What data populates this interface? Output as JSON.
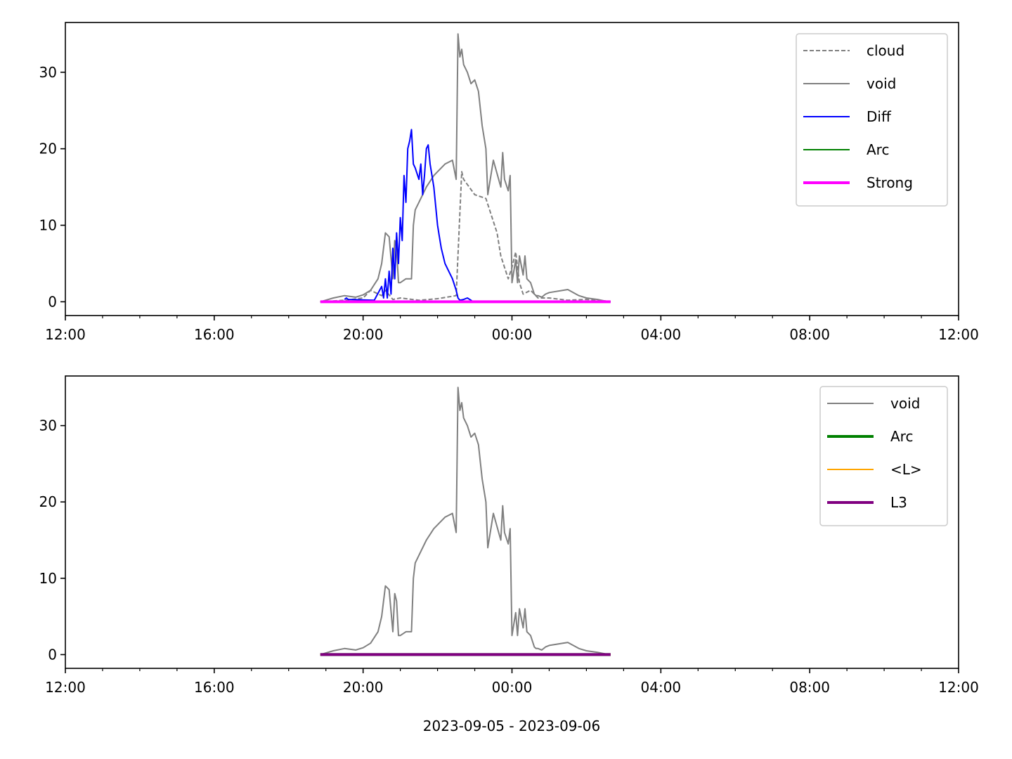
{
  "figure": {
    "date_range_label": "2023-09-05 - 2023-09-06"
  },
  "chart_data": [
    {
      "type": "line",
      "x_unit": "hours since 2023-09-05 12:00",
      "xlim": [
        0,
        24
      ],
      "ylim": [
        -1.8,
        36.5
      ],
      "x_ticks": [
        {
          "t": 0,
          "label": "12:00"
        },
        {
          "t": 4,
          "label": "16:00"
        },
        {
          "t": 8,
          "label": "20:00"
        },
        {
          "t": 12,
          "label": "00:00"
        },
        {
          "t": 16,
          "label": "04:00"
        },
        {
          "t": 20,
          "label": "08:00"
        },
        {
          "t": 24,
          "label": "12:00"
        }
      ],
      "y_ticks": [
        0,
        10,
        20,
        30
      ],
      "legend_position": "upper right",
      "series": [
        {
          "name": "cloud",
          "color": "#808080",
          "style": "dashed",
          "x": [
            6.85,
            7.5,
            8.0,
            8.2,
            8.5,
            8.6,
            8.8,
            9.0,
            9.5,
            10.0,
            10.5,
            10.65,
            10.7,
            11.0,
            11.3,
            11.6,
            11.7,
            11.9,
            12.0,
            12.1,
            12.2,
            12.3,
            12.5,
            12.7,
            13.0,
            13.5,
            14.0,
            14.5,
            14.65
          ],
          "values": [
            0.0,
            0.2,
            0.5,
            1.5,
            0.8,
            1.5,
            0.3,
            0.5,
            0.2,
            0.4,
            0.8,
            17.0,
            16.0,
            14.0,
            13.5,
            9.0,
            6.0,
            3.0,
            4.5,
            6.5,
            2.5,
            1.0,
            1.5,
            0.5,
            0.5,
            0.2,
            0.3,
            0.1,
            0.0
          ]
        },
        {
          "name": "void",
          "color": "#808080",
          "style": "solid",
          "x": [
            6.85,
            7.2,
            7.5,
            7.8,
            8.0,
            8.2,
            8.4,
            8.5,
            8.6,
            8.7,
            8.8,
            8.85,
            8.9,
            8.95,
            9.0,
            9.15,
            9.3,
            9.35,
            9.4,
            9.5,
            9.7,
            9.9,
            10.0,
            10.2,
            10.4,
            10.5,
            10.55,
            10.6,
            10.65,
            10.7,
            10.8,
            10.9,
            11.0,
            11.1,
            11.2,
            11.3,
            11.35,
            11.5,
            11.7,
            11.75,
            11.8,
            11.9,
            11.95,
            12.0,
            12.1,
            12.15,
            12.2,
            12.3,
            12.35,
            12.4,
            12.5,
            12.6,
            12.65,
            12.7,
            12.8,
            12.9,
            13.0,
            13.5,
            13.8,
            14.0,
            14.3,
            14.5,
            14.65
          ],
          "values": [
            0.0,
            0.5,
            0.8,
            0.6,
            0.9,
            1.5,
            3.0,
            5.0,
            9.0,
            8.5,
            3.0,
            8.0,
            7.0,
            2.5,
            2.5,
            3.0,
            3.0,
            10.0,
            12.0,
            13.0,
            15.0,
            16.5,
            17.0,
            18.0,
            18.5,
            16.0,
            35.0,
            32.0,
            33.0,
            31.0,
            30.0,
            28.5,
            29.0,
            27.5,
            23.0,
            20.0,
            14.0,
            18.5,
            15.0,
            19.5,
            16.0,
            14.5,
            16.5,
            2.5,
            5.5,
            2.5,
            6.0,
            3.5,
            6.0,
            3.0,
            2.5,
            1.0,
            0.8,
            0.8,
            0.6,
            1.0,
            1.2,
            1.6,
            0.8,
            0.5,
            0.3,
            0.1,
            0.0
          ]
        },
        {
          "name": "Diff",
          "color": "#0000ff",
          "style": "solid",
          "x": [
            7.5,
            7.55,
            7.6,
            8.3,
            8.5,
            8.55,
            8.6,
            8.65,
            8.7,
            8.75,
            8.8,
            8.85,
            8.9,
            8.95,
            9.0,
            9.05,
            9.1,
            9.15,
            9.2,
            9.25,
            9.3,
            9.35,
            9.4,
            9.5,
            9.55,
            9.6,
            9.65,
            9.7,
            9.75,
            9.8,
            9.9,
            10.0,
            10.05,
            10.1,
            10.2,
            10.3,
            10.4,
            10.5,
            10.55,
            10.6,
            10.7,
            10.8,
            10.9,
            10.95
          ],
          "values": [
            0.3,
            0.5,
            0.3,
            0.2,
            2.0,
            0.5,
            3.0,
            0.5,
            4.0,
            1.0,
            7.0,
            3.0,
            9.0,
            5.0,
            11.0,
            8.0,
            16.5,
            13.0,
            20.0,
            21.0,
            22.5,
            18.0,
            17.5,
            16.0,
            18.0,
            14.0,
            16.5,
            20.0,
            20.5,
            18.0,
            15.0,
            10.0,
            8.5,
            7.0,
            5.0,
            4.0,
            3.0,
            1.5,
            0.5,
            0.2,
            0.3,
            0.5,
            0.2,
            0.0
          ]
        },
        {
          "name": "Arc",
          "color": "#008000",
          "style": "solid",
          "x": [
            6.85,
            14.65
          ],
          "values": [
            0.0,
            0.0
          ]
        },
        {
          "name": "Strong",
          "color": "#ff00ff",
          "style": "solid",
          "x": [
            6.85,
            14.65
          ],
          "values": [
            0.0,
            0.0
          ]
        }
      ]
    },
    {
      "type": "line",
      "x_unit": "hours since 2023-09-05 12:00",
      "xlim": [
        0,
        24
      ],
      "ylim": [
        -1.8,
        36.5
      ],
      "x_ticks": [
        {
          "t": 0,
          "label": "12:00"
        },
        {
          "t": 4,
          "label": "16:00"
        },
        {
          "t": 8,
          "label": "20:00"
        },
        {
          "t": 12,
          "label": "00:00"
        },
        {
          "t": 16,
          "label": "04:00"
        },
        {
          "t": 20,
          "label": "08:00"
        },
        {
          "t": 24,
          "label": "12:00"
        }
      ],
      "y_ticks": [
        0,
        10,
        20,
        30
      ],
      "legend_position": "upper right",
      "series": [
        {
          "name": "void",
          "color": "#808080",
          "style": "solid",
          "x": [
            6.85,
            7.2,
            7.5,
            7.8,
            8.0,
            8.2,
            8.4,
            8.5,
            8.6,
            8.7,
            8.8,
            8.85,
            8.9,
            8.95,
            9.0,
            9.15,
            9.3,
            9.35,
            9.4,
            9.5,
            9.7,
            9.9,
            10.0,
            10.2,
            10.4,
            10.5,
            10.55,
            10.6,
            10.65,
            10.7,
            10.8,
            10.9,
            11.0,
            11.1,
            11.2,
            11.3,
            11.35,
            11.5,
            11.7,
            11.75,
            11.8,
            11.9,
            11.95,
            12.0,
            12.1,
            12.15,
            12.2,
            12.3,
            12.35,
            12.4,
            12.5,
            12.6,
            12.65,
            12.7,
            12.8,
            12.9,
            13.0,
            13.5,
            13.8,
            14.0,
            14.3,
            14.5,
            14.65
          ],
          "values": [
            0.0,
            0.5,
            0.8,
            0.6,
            0.9,
            1.5,
            3.0,
            5.0,
            9.0,
            8.5,
            3.0,
            8.0,
            7.0,
            2.5,
            2.5,
            3.0,
            3.0,
            10.0,
            12.0,
            13.0,
            15.0,
            16.5,
            17.0,
            18.0,
            18.5,
            16.0,
            35.0,
            32.0,
            33.0,
            31.0,
            30.0,
            28.5,
            29.0,
            27.5,
            23.0,
            20.0,
            14.0,
            18.5,
            15.0,
            19.5,
            16.0,
            14.5,
            16.5,
            2.5,
            5.5,
            2.5,
            6.0,
            3.5,
            6.0,
            3.0,
            2.5,
            1.0,
            0.8,
            0.8,
            0.6,
            1.0,
            1.2,
            1.6,
            0.8,
            0.5,
            0.3,
            0.1,
            0.0
          ]
        },
        {
          "name": "Arc",
          "color": "#008000",
          "style": "solid",
          "x": [
            6.85,
            14.65
          ],
          "values": [
            0.0,
            0.0
          ]
        },
        {
          "name": "<L>",
          "color": "#ffa500",
          "style": "solid",
          "x": [
            6.85,
            14.65
          ],
          "values": [
            0.0,
            0.0
          ]
        },
        {
          "name": "L3",
          "color": "#800080",
          "style": "solid",
          "x": [
            6.85,
            14.65
          ],
          "values": [
            0.0,
            0.0
          ]
        }
      ]
    }
  ]
}
